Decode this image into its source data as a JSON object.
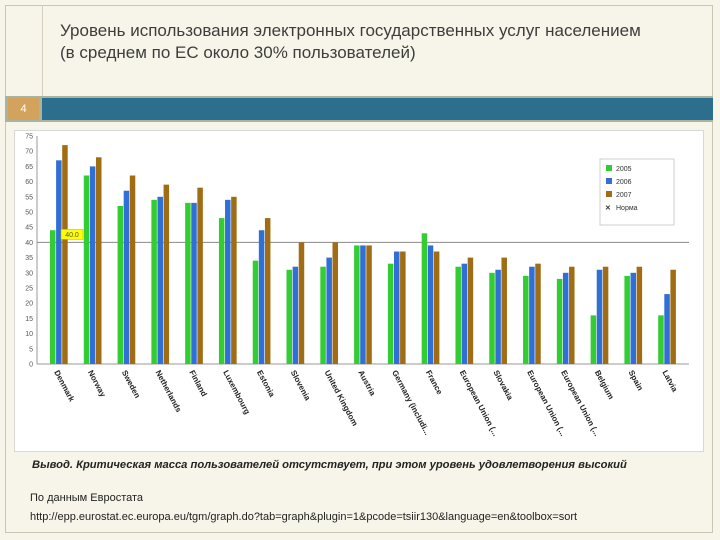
{
  "slide": {
    "title_line1": "Уровень  использования электронных государственных услуг населением",
    "title_line2": "(в среднем  по ЕС около 30%  пользователей)",
    "slide_number": "4",
    "conclusion": "Вывод. Критическая масса пользователей  отсутствует, при этом уровень удовлетворения высокий",
    "source_label": "По данным Евростата",
    "source_url": "http://epp.eurostat.ec.europa.eu/tgm/graph.do?tab=graph&plugin=1&pcode=tsiir130&language=en&toolbox=sort"
  },
  "colors": {
    "series_2005": "#33cc33",
    "series_2006": "#2f6fd6",
    "series_2007": "#a06d14",
    "average_line": "#8a8a8a",
    "avg_label_bg": "#ffff00"
  },
  "chart_data": {
    "type": "bar",
    "ylim": [
      0,
      75
    ],
    "yticks": [
      0,
      5,
      10,
      15,
      20,
      25,
      30,
      35,
      40,
      45,
      50,
      55,
      60,
      65,
      70,
      75
    ],
    "grid": false,
    "legend_placement": "top-right",
    "reference_line": {
      "value": 40,
      "label": "40.0"
    },
    "categories": [
      "Denmark",
      "Norway",
      "Sweden",
      "Netherlands",
      "Finland",
      "Luxembourg",
      "Estonia",
      "Slovenia",
      "United Kingdom",
      "Austria",
      "Germany (includi...",
      "France",
      "European Union (...",
      "Slovakia",
      "European Union (...",
      "European Union (...",
      "Belgium",
      "Spain",
      "Latvia"
    ],
    "series": [
      {
        "name": "2005",
        "color_key": "series_2005",
        "values": [
          44,
          62,
          52,
          54,
          53,
          48,
          34,
          31,
          32,
          39,
          33,
          43,
          32,
          30,
          29,
          28,
          16,
          29,
          16
        ]
      },
      {
        "name": "2006",
        "color_key": "series_2006",
        "values": [
          67,
          65,
          57,
          55,
          53,
          54,
          44,
          32,
          35,
          39,
          37,
          39,
          33,
          31,
          32,
          30,
          31,
          30,
          23
        ]
      },
      {
        "name": "2007",
        "color_key": "series_2007",
        "values": [
          72,
          68,
          62,
          59,
          58,
          55,
          48,
          40,
          40,
          39,
          37,
          37,
          35,
          35,
          33,
          32,
          32,
          32,
          31
        ]
      }
    ],
    "legend_items": [
      "2005",
      "2006",
      "2007",
      "Норма"
    ]
  }
}
